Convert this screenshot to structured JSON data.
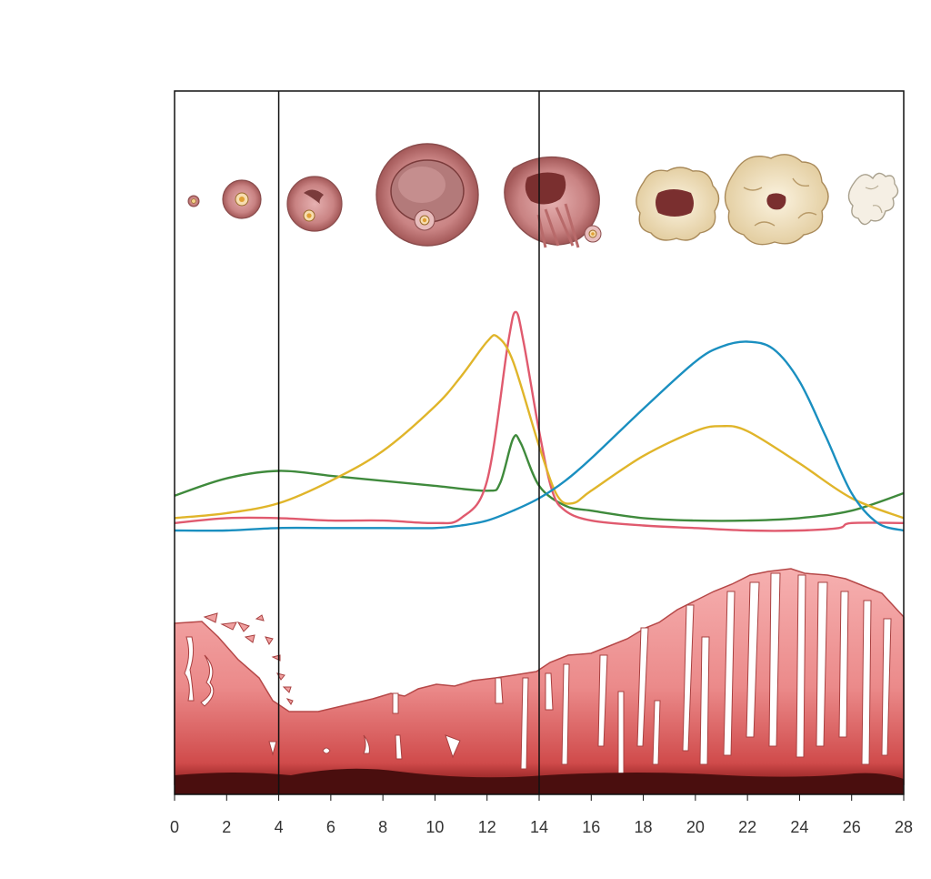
{
  "colors": {
    "frame": "#111111",
    "lh": "#e05a6e",
    "fsh": "#3f8a3c",
    "estrogen": "#e0b52a",
    "progesterone": "#1a8fc0",
    "endometrium_top": "#f4a6a6",
    "endometrium_mid": "#e87c7c",
    "endometrium_base": "#4a0e0e",
    "follicle_pink": "#c98888",
    "corpus_luteum": "#f3e6c9"
  },
  "chart_data": {
    "type": "line",
    "xlabel": "",
    "ylabel": "",
    "title": "",
    "x_ticks": [
      "0",
      "2",
      "4",
      "6",
      "8",
      "10",
      "12",
      "14",
      "16",
      "18",
      "20",
      "22",
      "24",
      "26",
      "28"
    ],
    "xlim": [
      0,
      28
    ],
    "ylim": [
      0,
      1
    ],
    "grid": false,
    "legend": "none",
    "vertical_markers": [
      4,
      14
    ],
    "series": [
      {
        "key": "fsh",
        "x": [
          0,
          2,
          4,
          6,
          8,
          10,
          12,
          12.5,
          13,
          13.3,
          14,
          15,
          16,
          18,
          20,
          22,
          24,
          26,
          28
        ],
        "values": [
          0.14,
          0.21,
          0.24,
          0.22,
          0.2,
          0.18,
          0.16,
          0.19,
          0.37,
          0.35,
          0.18,
          0.1,
          0.08,
          0.05,
          0.04,
          0.04,
          0.05,
          0.08,
          0.15
        ]
      },
      {
        "key": "lh",
        "x": [
          0,
          2,
          4,
          6,
          8,
          10,
          11,
          12,
          12.8,
          13.1,
          13.4,
          14,
          14.5,
          15,
          16,
          18,
          20,
          22,
          24,
          25.5,
          26,
          28
        ],
        "values": [
          0.03,
          0.05,
          0.05,
          0.04,
          0.04,
          0.03,
          0.05,
          0.2,
          0.75,
          0.88,
          0.76,
          0.4,
          0.16,
          0.08,
          0.04,
          0.02,
          0.01,
          0.0,
          0.0,
          0.01,
          0.03,
          0.03
        ]
      },
      {
        "key": "estrogen",
        "x": [
          0,
          2,
          4,
          6,
          8,
          10,
          11,
          12,
          12.4,
          13,
          14,
          14.7,
          15.3,
          16,
          18,
          20,
          21,
          22,
          24,
          26,
          28
        ],
        "values": [
          0.05,
          0.07,
          0.11,
          0.2,
          0.32,
          0.5,
          0.62,
          0.76,
          0.78,
          0.68,
          0.34,
          0.14,
          0.11,
          0.16,
          0.3,
          0.4,
          0.42,
          0.4,
          0.27,
          0.13,
          0.05
        ]
      },
      {
        "key": "progesterone",
        "x": [
          0,
          2,
          4,
          6,
          8,
          10,
          11,
          12,
          13,
          14,
          15,
          16,
          18,
          20,
          21,
          22,
          23,
          24,
          25,
          26,
          27,
          28
        ],
        "values": [
          0.0,
          0.0,
          0.01,
          0.01,
          0.01,
          0.01,
          0.02,
          0.04,
          0.08,
          0.13,
          0.2,
          0.29,
          0.49,
          0.68,
          0.74,
          0.76,
          0.73,
          0.6,
          0.38,
          0.15,
          0.03,
          0.0
        ]
      }
    ]
  }
}
